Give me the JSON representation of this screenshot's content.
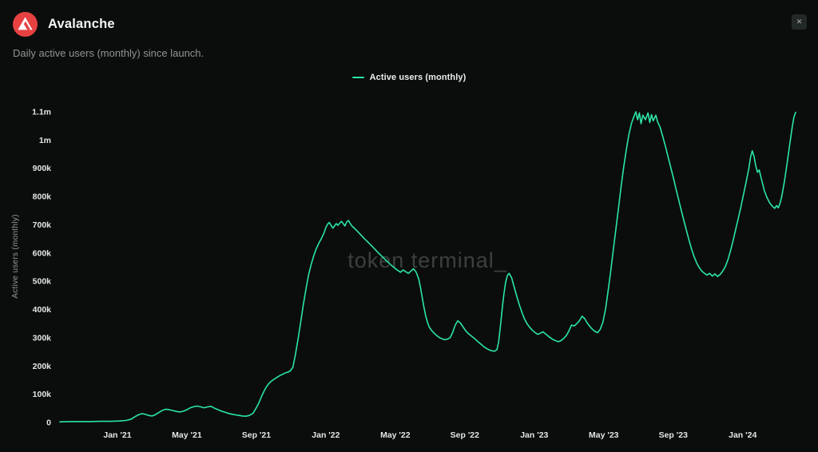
{
  "header": {
    "title": "Avalanche",
    "subtitle": "Daily active users (monthly) since launch.",
    "close_label": "✕"
  },
  "colors": {
    "background": "#0b0d0c",
    "accent": "#2be5a9",
    "logo_red": "#e84142",
    "watermark_gray": "#434a47"
  },
  "watermark": "token terminal_",
  "chart_data": {
    "type": "line",
    "title": "Daily active users (monthly) since launch",
    "legend": [
      {
        "label": "Active users (monthly)",
        "color": "#2be5a9"
      }
    ],
    "legend_position": "top-center",
    "grid": false,
    "ylabel": "Active users (monthly)",
    "y_unit": "thousands of users",
    "ylim": [
      0,
      1182
    ],
    "x_unit": "months since Sep 2020",
    "xlim": [
      0.69,
      43.6
    ],
    "y_ticks": [
      {
        "label": "0",
        "value": 0
      },
      {
        "label": "100k",
        "value": 100
      },
      {
        "label": "200k",
        "value": 200
      },
      {
        "label": "300k",
        "value": 300
      },
      {
        "label": "400k",
        "value": 400
      },
      {
        "label": "500k",
        "value": 500
      },
      {
        "label": "600k",
        "value": 600
      },
      {
        "label": "700k",
        "value": 700
      },
      {
        "label": "800k",
        "value": 800
      },
      {
        "label": "900k",
        "value": 900
      },
      {
        "label": "1m",
        "value": 1000
      },
      {
        "label": "1.1m",
        "value": 1100
      }
    ],
    "x_ticks": [
      {
        "label": "Jan '21",
        "month": 4
      },
      {
        "label": "May '21",
        "month": 8
      },
      {
        "label": "Sep '21",
        "month": 12
      },
      {
        "label": "Jan '22",
        "month": 16
      },
      {
        "label": "May '22",
        "month": 20
      },
      {
        "label": "Sep '22",
        "month": 24
      },
      {
        "label": "Jan '23",
        "month": 28
      },
      {
        "label": "May '23",
        "month": 32
      },
      {
        "label": "Sep '23",
        "month": 36
      },
      {
        "label": "Jan '24",
        "month": 40
      }
    ],
    "series": [
      {
        "name": "Active users (monthly)",
        "color": "#2be5a9",
        "points": [
          [
            0.69,
            2
          ],
          [
            1.2,
            3
          ],
          [
            1.8,
            3
          ],
          [
            2.4,
            3
          ],
          [
            3.0,
            4
          ],
          [
            3.6,
            4
          ],
          [
            4.1,
            5
          ],
          [
            4.5,
            7
          ],
          [
            4.8,
            12
          ],
          [
            5.0,
            20
          ],
          [
            5.2,
            27
          ],
          [
            5.4,
            31
          ],
          [
            5.6,
            29
          ],
          [
            5.8,
            25
          ],
          [
            6.0,
            23
          ],
          [
            6.2,
            28
          ],
          [
            6.4,
            36
          ],
          [
            6.6,
            43
          ],
          [
            6.8,
            47
          ],
          [
            7.0,
            45
          ],
          [
            7.2,
            42
          ],
          [
            7.4,
            39
          ],
          [
            7.6,
            37
          ],
          [
            7.8,
            40
          ],
          [
            8.0,
            45
          ],
          [
            8.2,
            52
          ],
          [
            8.4,
            56
          ],
          [
            8.6,
            58
          ],
          [
            8.8,
            55
          ],
          [
            9.0,
            52
          ],
          [
            9.2,
            55
          ],
          [
            9.4,
            57
          ],
          [
            9.6,
            50
          ],
          [
            9.8,
            45
          ],
          [
            10.0,
            40
          ],
          [
            10.2,
            36
          ],
          [
            10.4,
            32
          ],
          [
            10.6,
            29
          ],
          [
            10.8,
            27
          ],
          [
            11.0,
            25
          ],
          [
            11.2,
            23
          ],
          [
            11.4,
            22
          ],
          [
            11.6,
            25
          ],
          [
            11.8,
            32
          ],
          [
            12.0,
            52
          ],
          [
            12.15,
            70
          ],
          [
            12.3,
            92
          ],
          [
            12.45,
            112
          ],
          [
            12.6,
            128
          ],
          [
            12.75,
            140
          ],
          [
            12.9,
            148
          ],
          [
            13.05,
            154
          ],
          [
            13.2,
            160
          ],
          [
            13.35,
            166
          ],
          [
            13.5,
            170
          ],
          [
            13.65,
            175
          ],
          [
            13.8,
            178
          ],
          [
            13.95,
            182
          ],
          [
            14.1,
            195
          ],
          [
            14.25,
            240
          ],
          [
            14.4,
            295
          ],
          [
            14.55,
            355
          ],
          [
            14.7,
            415
          ],
          [
            14.85,
            470
          ],
          [
            15.0,
            520
          ],
          [
            15.15,
            558
          ],
          [
            15.3,
            590
          ],
          [
            15.45,
            615
          ],
          [
            15.6,
            635
          ],
          [
            15.75,
            652
          ],
          [
            15.9,
            672
          ],
          [
            16.0,
            690
          ],
          [
            16.1,
            702
          ],
          [
            16.2,
            708
          ],
          [
            16.3,
            698
          ],
          [
            16.4,
            688
          ],
          [
            16.5,
            696
          ],
          [
            16.6,
            704
          ],
          [
            16.7,
            698
          ],
          [
            16.8,
            706
          ],
          [
            16.9,
            712
          ],
          [
            17.0,
            704
          ],
          [
            17.1,
            696
          ],
          [
            17.2,
            710
          ],
          [
            17.3,
            715
          ],
          [
            17.4,
            705
          ],
          [
            17.5,
            696
          ],
          [
            17.6,
            690
          ],
          [
            17.7,
            684
          ],
          [
            17.85,
            675
          ],
          [
            18.0,
            665
          ],
          [
            18.2,
            652
          ],
          [
            18.4,
            640
          ],
          [
            18.6,
            628
          ],
          [
            18.8,
            615
          ],
          [
            19.0,
            602
          ],
          [
            19.2,
            590
          ],
          [
            19.4,
            578
          ],
          [
            19.6,
            566
          ],
          [
            19.8,
            555
          ],
          [
            20.0,
            545
          ],
          [
            20.15,
            538
          ],
          [
            20.3,
            532
          ],
          [
            20.45,
            540
          ],
          [
            20.6,
            534
          ],
          [
            20.75,
            528
          ],
          [
            20.9,
            536
          ],
          [
            21.05,
            544
          ],
          [
            21.2,
            532
          ],
          [
            21.35,
            508
          ],
          [
            21.45,
            478
          ],
          [
            21.55,
            442
          ],
          [
            21.65,
            408
          ],
          [
            21.75,
            378
          ],
          [
            21.85,
            355
          ],
          [
            21.95,
            338
          ],
          [
            22.1,
            325
          ],
          [
            22.25,
            315
          ],
          [
            22.4,
            307
          ],
          [
            22.55,
            300
          ],
          [
            22.7,
            296
          ],
          [
            22.85,
            293
          ],
          [
            23.0,
            295
          ],
          [
            23.15,
            300
          ],
          [
            23.3,
            318
          ],
          [
            23.45,
            345
          ],
          [
            23.6,
            360
          ],
          [
            23.75,
            352
          ],
          [
            23.9,
            338
          ],
          [
            24.05,
            325
          ],
          [
            24.2,
            315
          ],
          [
            24.35,
            308
          ],
          [
            24.5,
            300
          ],
          [
            24.65,
            292
          ],
          [
            24.8,
            284
          ],
          [
            24.95,
            276
          ],
          [
            25.1,
            268
          ],
          [
            25.25,
            262
          ],
          [
            25.4,
            257
          ],
          [
            25.55,
            254
          ],
          [
            25.7,
            252
          ],
          [
            25.85,
            258
          ],
          [
            25.95,
            285
          ],
          [
            26.05,
            340
          ],
          [
            26.15,
            400
          ],
          [
            26.25,
            455
          ],
          [
            26.35,
            495
          ],
          [
            26.45,
            520
          ],
          [
            26.55,
            528
          ],
          [
            26.7,
            512
          ],
          [
            26.85,
            478
          ],
          [
            27.0,
            445
          ],
          [
            27.15,
            415
          ],
          [
            27.3,
            388
          ],
          [
            27.45,
            365
          ],
          [
            27.6,
            348
          ],
          [
            27.75,
            336
          ],
          [
            27.9,
            326
          ],
          [
            28.05,
            318
          ],
          [
            28.2,
            312
          ],
          [
            28.35,
            316
          ],
          [
            28.5,
            321
          ],
          [
            28.65,
            314
          ],
          [
            28.8,
            306
          ],
          [
            28.95,
            299
          ],
          [
            29.1,
            293
          ],
          [
            29.25,
            289
          ],
          [
            29.4,
            286
          ],
          [
            29.55,
            290
          ],
          [
            29.7,
            298
          ],
          [
            29.85,
            308
          ],
          [
            30.0,
            325
          ],
          [
            30.15,
            345
          ],
          [
            30.3,
            342
          ],
          [
            30.45,
            350
          ],
          [
            30.6,
            360
          ],
          [
            30.75,
            376
          ],
          [
            30.9,
            368
          ],
          [
            31.05,
            352
          ],
          [
            31.2,
            340
          ],
          [
            31.35,
            330
          ],
          [
            31.5,
            322
          ],
          [
            31.65,
            318
          ],
          [
            31.8,
            330
          ],
          [
            31.95,
            355
          ],
          [
            32.1,
            400
          ],
          [
            32.25,
            465
          ],
          [
            32.4,
            535
          ],
          [
            32.55,
            610
          ],
          [
            32.7,
            685
          ],
          [
            32.85,
            760
          ],
          [
            33.0,
            835
          ],
          [
            33.15,
            905
          ],
          [
            33.3,
            965
          ],
          [
            33.45,
            1020
          ],
          [
            33.6,
            1060
          ],
          [
            33.75,
            1085
          ],
          [
            33.85,
            1100
          ],
          [
            33.95,
            1072
          ],
          [
            34.05,
            1096
          ],
          [
            34.15,
            1058
          ],
          [
            34.25,
            1088
          ],
          [
            34.4,
            1072
          ],
          [
            34.55,
            1096
          ],
          [
            34.65,
            1062
          ],
          [
            34.75,
            1090
          ],
          [
            34.85,
            1068
          ],
          [
            35.0,
            1088
          ],
          [
            35.1,
            1065
          ],
          [
            35.25,
            1045
          ],
          [
            35.4,
            1012
          ],
          [
            35.55,
            978
          ],
          [
            35.7,
            942
          ],
          [
            35.85,
            905
          ],
          [
            36.0,
            868
          ],
          [
            36.15,
            830
          ],
          [
            36.3,
            792
          ],
          [
            36.45,
            755
          ],
          [
            36.6,
            718
          ],
          [
            36.75,
            682
          ],
          [
            36.9,
            648
          ],
          [
            37.05,
            615
          ],
          [
            37.2,
            588
          ],
          [
            37.35,
            565
          ],
          [
            37.5,
            548
          ],
          [
            37.65,
            536
          ],
          [
            37.8,
            528
          ],
          [
            37.95,
            522
          ],
          [
            38.1,
            528
          ],
          [
            38.25,
            518
          ],
          [
            38.4,
            526
          ],
          [
            38.55,
            517
          ],
          [
            38.7,
            524
          ],
          [
            38.85,
            536
          ],
          [
            39.0,
            552
          ],
          [
            39.15,
            576
          ],
          [
            39.3,
            608
          ],
          [
            39.45,
            645
          ],
          [
            39.6,
            684
          ],
          [
            39.75,
            724
          ],
          [
            39.9,
            765
          ],
          [
            40.05,
            808
          ],
          [
            40.2,
            852
          ],
          [
            40.35,
            898
          ],
          [
            40.45,
            938
          ],
          [
            40.55,
            962
          ],
          [
            40.65,
            942
          ],
          [
            40.75,
            910
          ],
          [
            40.85,
            886
          ],
          [
            40.95,
            894
          ],
          [
            41.05,
            868
          ],
          [
            41.15,
            845
          ],
          [
            41.25,
            820
          ],
          [
            41.4,
            796
          ],
          [
            41.55,
            778
          ],
          [
            41.7,
            766
          ],
          [
            41.85,
            758
          ],
          [
            41.95,
            768
          ],
          [
            42.05,
            760
          ],
          [
            42.15,
            776
          ],
          [
            42.25,
            800
          ],
          [
            42.4,
            852
          ],
          [
            42.55,
            915
          ],
          [
            42.7,
            980
          ],
          [
            42.85,
            1045
          ],
          [
            42.95,
            1082
          ],
          [
            43.05,
            1098
          ]
        ]
      }
    ]
  }
}
